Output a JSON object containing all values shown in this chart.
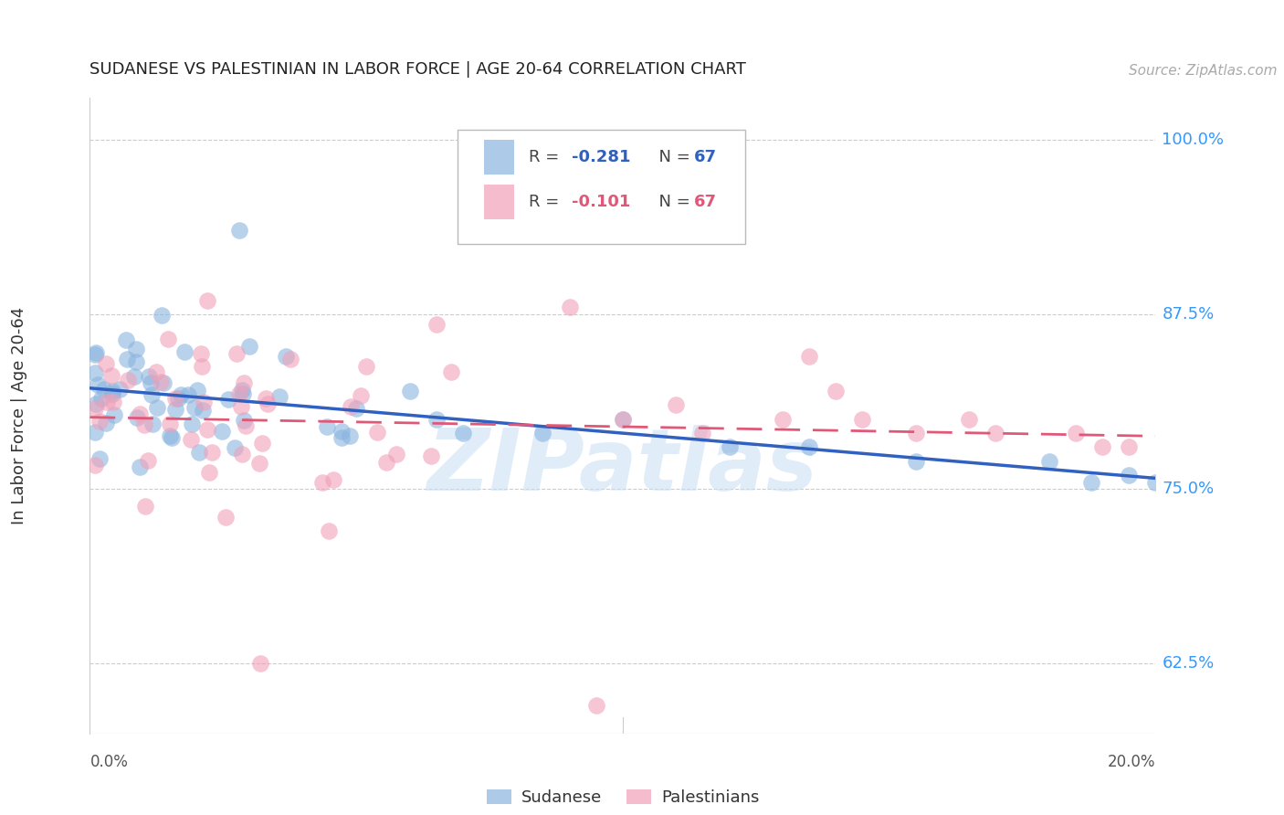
{
  "title": "SUDANESE VS PALESTINIAN IN LABOR FORCE | AGE 20-64 CORRELATION CHART",
  "source": "Source: ZipAtlas.com",
  "ylabel": "In Labor Force | Age 20-64",
  "blue_color": "#8ab4e0",
  "pink_color": "#f0a0b8",
  "blue_line_color": "#3060c0",
  "pink_line_color": "#e05878",
  "blue_label_color": "#3399ff",
  "ytick_vals": [
    0.625,
    0.75,
    0.875,
    1.0
  ],
  "ytick_labels": [
    "62.5%",
    "75.0%",
    "87.5%",
    "100.0%"
  ],
  "xlim_min": 0.0,
  "xlim_max": 0.2,
  "ylim_min": 0.575,
  "ylim_max": 1.03,
  "watermark_text": "ZIPatlas",
  "watermark_color": "#c8dff5"
}
